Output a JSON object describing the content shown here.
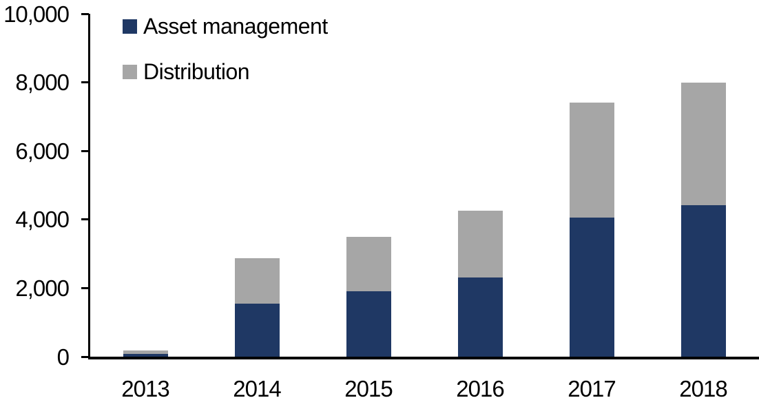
{
  "chart_data": {
    "type": "bar",
    "stacked": true,
    "title": "",
    "xlabel": "",
    "ylabel": "",
    "categories": [
      "2013",
      "2014",
      "2015",
      "2016",
      "2017",
      "2018"
    ],
    "series": [
      {
        "name": "Asset management",
        "color": "#1F3864",
        "values": [
          90,
          1550,
          1900,
          2310,
          4050,
          4425
        ]
      },
      {
        "name": "Distribution",
        "color": "#A6A6A6",
        "values": [
          100,
          1330,
          1600,
          1940,
          3350,
          3575
        ]
      }
    ],
    "totals": [
      190,
      2880,
      3500,
      4250,
      7400,
      8000
    ],
    "ylim": [
      0,
      10000
    ],
    "ytick_interval": 2000,
    "yticks": [
      {
        "value": 0,
        "label": "0"
      },
      {
        "value": 2000,
        "label": "2,000"
      },
      {
        "value": 4000,
        "label": "4,000"
      },
      {
        "value": 6000,
        "label": "6,000"
      },
      {
        "value": 8000,
        "label": "8,000"
      },
      {
        "value": 10000,
        "label": "10,000"
      }
    ],
    "grid": false,
    "legend_position": "top-left-inside",
    "axis_color": "#000000",
    "background": "#FFFFFF"
  }
}
